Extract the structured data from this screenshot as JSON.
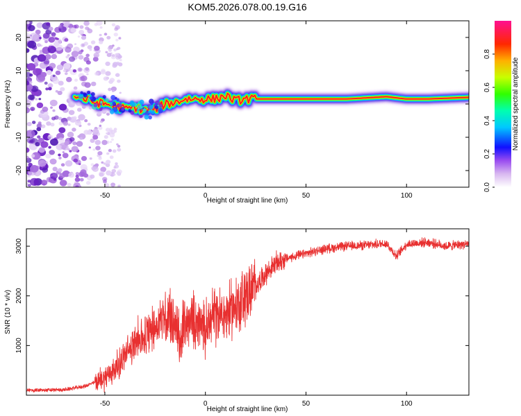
{
  "title": "KOM5.2026.078.00.19.G16",
  "chart_data": [
    {
      "type": "heatmap",
      "xlabel": "Height of straight line (km)",
      "ylabel": "Frequency (Hz)",
      "xlim": [
        -89,
        131
      ],
      "ylim": [
        -25,
        25
      ],
      "xticks": [
        -50,
        0,
        50,
        100
      ],
      "yticks": [
        -20,
        -10,
        0,
        10,
        20
      ],
      "colorbar": {
        "label": "Normalized spectral amplitude",
        "range": [
          0,
          1
        ],
        "ticks": [
          "0.0",
          "0.2",
          "0.4",
          "0.6",
          "0.8"
        ]
      },
      "ridge": {
        "x": [
          -65,
          -60,
          -55,
          -50,
          -45,
          -40,
          -35,
          -30,
          -25,
          -20,
          -15,
          -10,
          -5,
          0,
          5,
          10,
          15,
          20,
          30,
          50,
          70,
          90,
          100,
          110,
          131
        ],
        "freq": [
          2.5,
          1.5,
          0.5,
          0,
          -0.5,
          -1.5,
          -1,
          -2,
          -1.5,
          0,
          0.5,
          1.5,
          1.5,
          1.5,
          1.5,
          2.5,
          1,
          1.5,
          1.5,
          1.5,
          1.5,
          2.2,
          1.5,
          1.5,
          2
        ]
      }
    },
    {
      "type": "line",
      "xlabel": "Height of straight line (km)",
      "ylabel": "SNR (10 * v/v)",
      "xlim": [
        -89,
        131
      ],
      "ylim": [
        0,
        3350
      ],
      "xticks": [
        -50,
        0,
        50,
        100
      ],
      "yticks": [
        1000,
        2000,
        3000
      ],
      "color": "#e83030",
      "series": [
        {
          "name": "SNR",
          "x": [
            -89,
            -80,
            -70,
            -60,
            -55,
            -50,
            -45,
            -40,
            -35,
            -30,
            -25,
            -20,
            -15,
            -12,
            -10,
            -5,
            0,
            5,
            10,
            15,
            20,
            25,
            30,
            35,
            40,
            50,
            60,
            70,
            80,
            90,
            95,
            100,
            110,
            120,
            131
          ],
          "y": [
            100,
            100,
            110,
            180,
            260,
            360,
            520,
            800,
            1050,
            1200,
            1380,
            1600,
            1450,
            1000,
            1500,
            1500,
            1300,
            1600,
            1600,
            1800,
            2000,
            2200,
            2450,
            2650,
            2750,
            2850,
            2950,
            3000,
            3020,
            3060,
            2800,
            3040,
            3080,
            3000,
            3050
          ]
        }
      ]
    }
  ]
}
